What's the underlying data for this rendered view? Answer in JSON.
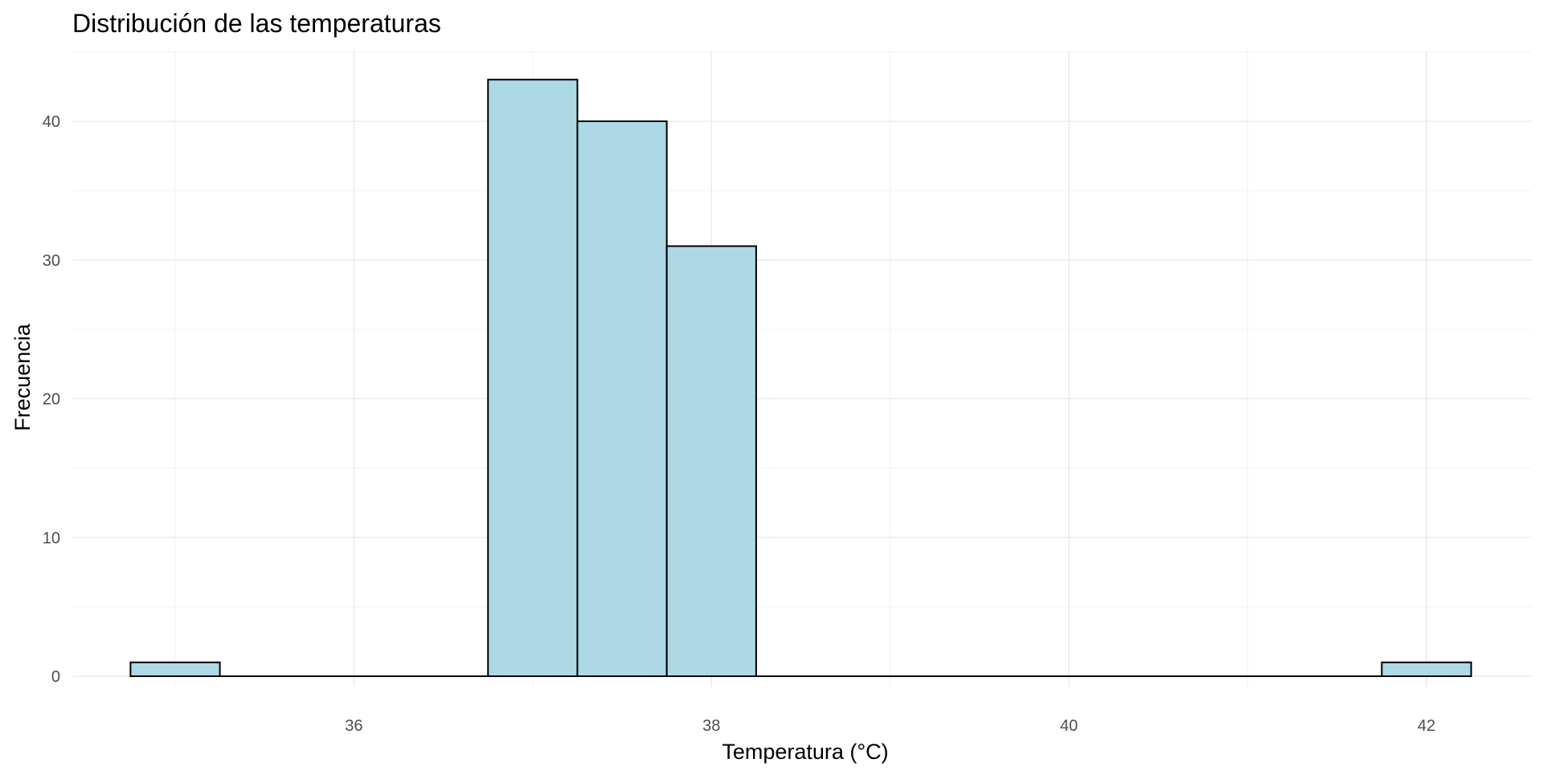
{
  "chart_data": {
    "type": "bar",
    "title": "Distribución de las temperaturas",
    "xlabel": "Temperatura (°C)",
    "ylabel": "Frecuencia",
    "bin_width": 0.5,
    "bins": [
      {
        "x_start": 34.75,
        "x_end": 35.25,
        "count": 1
      },
      {
        "x_start": 35.25,
        "x_end": 35.75,
        "count": 0
      },
      {
        "x_start": 35.75,
        "x_end": 36.25,
        "count": 0
      },
      {
        "x_start": 36.25,
        "x_end": 36.75,
        "count": 0
      },
      {
        "x_start": 36.75,
        "x_end": 37.25,
        "count": 43
      },
      {
        "x_start": 37.25,
        "x_end": 37.75,
        "count": 40
      },
      {
        "x_start": 37.75,
        "x_end": 38.25,
        "count": 31
      },
      {
        "x_start": 38.25,
        "x_end": 38.75,
        "count": 0
      },
      {
        "x_start": 38.75,
        "x_end": 39.25,
        "count": 0
      },
      {
        "x_start": 39.25,
        "x_end": 39.75,
        "count": 0
      },
      {
        "x_start": 39.75,
        "x_end": 40.25,
        "count": 0
      },
      {
        "x_start": 40.25,
        "x_end": 40.75,
        "count": 0
      },
      {
        "x_start": 40.75,
        "x_end": 41.25,
        "count": 0
      },
      {
        "x_start": 41.25,
        "x_end": 41.75,
        "count": 0
      },
      {
        "x_start": 41.75,
        "x_end": 42.25,
        "count": 1
      }
    ],
    "xlim": [
      34.75,
      42.25
    ],
    "ylim": [
      0,
      43
    ],
    "x_ticks": [
      36,
      38,
      40,
      42
    ],
    "x_tick_labels": [
      "36",
      "38",
      "40",
      "42"
    ],
    "y_ticks": [
      0,
      10,
      20,
      30,
      40
    ],
    "y_tick_labels": [
      "0",
      "10",
      "20",
      "30",
      "40"
    ],
    "grid": true,
    "legend": "none",
    "colors": {
      "bar_fill": "#add8e6",
      "bar_outline": "#000000",
      "grid": "#ebebeb",
      "tick_text": "#4d4d4d"
    }
  }
}
